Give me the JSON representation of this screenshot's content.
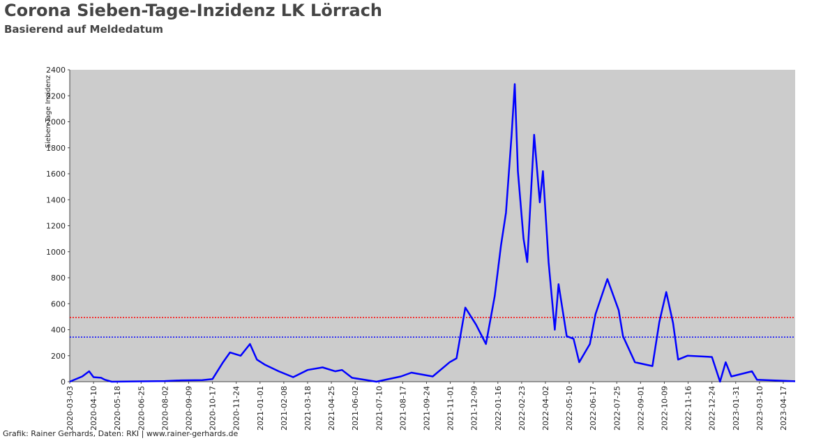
{
  "chart_data": {
    "type": "line",
    "title": "Corona Sieben-Tage-Inzidenz LK Lörrach",
    "subtitle": "Basierend auf Meldedatum",
    "y_label": "Sieben-Tage Inzidenz",
    "source": "Grafik: Rainer Gerhards, Daten: RKI | www.rainer-gerhards.de",
    "x": [
      "2020-03-03",
      "2020-03-23",
      "2020-04-03",
      "2020-04-10",
      "2020-04-22",
      "2020-04-28",
      "2020-05-09",
      "2020-08-02",
      "2020-08-28",
      "2020-10-01",
      "2020-10-17",
      "2020-11-03",
      "2020-11-14",
      "2020-12-01",
      "2020-12-16",
      "2020-12-27",
      "2021-01-09",
      "2021-01-31",
      "2021-02-23",
      "2021-03-18",
      "2021-04-11",
      "2021-05-01",
      "2021-05-12",
      "2021-05-28",
      "2021-07-06",
      "2021-08-14",
      "2021-08-31",
      "2021-10-04",
      "2021-10-31",
      "2021-11-11",
      "2021-11-25",
      "2021-12-12",
      "2021-12-28",
      "2022-01-11",
      "2022-01-21",
      "2022-01-29",
      "2022-02-07",
      "2022-02-12",
      "2022-02-17",
      "2022-02-26",
      "2022-03-04",
      "2022-03-15",
      "2022-03-24",
      "2022-03-29",
      "2022-04-07",
      "2022-04-17",
      "2022-04-23",
      "2022-05-06",
      "2022-05-17",
      "2022-05-26",
      "2022-06-12",
      "2022-06-21",
      "2022-07-10",
      "2022-07-28",
      "2022-08-04",
      "2022-08-23",
      "2022-09-20",
      "2022-10-01",
      "2022-10-12",
      "2022-10-23",
      "2022-10-31",
      "2022-11-15",
      "2022-12-24",
      "2023-01-06",
      "2023-01-15",
      "2023-01-24",
      "2023-02-26",
      "2023-03-06",
      "2023-05-06"
    ],
    "series": [
      {
        "name": "Sieben-Tage Inzidenz",
        "color": "#0000ff",
        "values": [
          0,
          40,
          80,
          35,
          30,
          15,
          0,
          5,
          10,
          12,
          20,
          150,
          225,
          200,
          290,
          170,
          130,
          80,
          35,
          90,
          110,
          80,
          90,
          30,
          0,
          40,
          70,
          40,
          150,
          180,
          570,
          440,
          290,
          660,
          1050,
          1300,
          1900,
          2290,
          1620,
          1100,
          920,
          1900,
          1380,
          1620,
          920,
          400,
          750,
          350,
          330,
          150,
          290,
          520,
          790,
          550,
          350,
          150,
          120,
          460,
          690,
          450,
          170,
          200,
          190,
          0,
          150,
          40,
          80,
          15,
          3
        ]
      }
    ],
    "hlines": [
      {
        "value": 494,
        "color": "#ff0000"
      },
      {
        "value": 343,
        "color": "#0000ff"
      }
    ],
    "xlim": [
      "2020-03-03",
      "2023-05-06"
    ],
    "xticks": [
      "2020-03-03",
      "2020-04-10",
      "2020-05-18",
      "2020-06-25",
      "2020-08-02",
      "2020-09-09",
      "2020-10-17",
      "2020-11-24",
      "2021-01-01",
      "2021-02-08",
      "2021-03-18",
      "2021-04-25",
      "2021-06-02",
      "2021-07-10",
      "2021-08-17",
      "2021-09-24",
      "2021-11-01",
      "2021-12-09",
      "2022-01-16",
      "2022-02-23",
      "2022-04-02",
      "2022-05-10",
      "2022-06-17",
      "2022-07-25",
      "2022-09-01",
      "2022-10-09",
      "2022-11-16",
      "2022-12-24",
      "2023-01-31",
      "2023-03-10",
      "2023-04-17"
    ],
    "ylim": [
      0,
      2400
    ],
    "yticks": [
      0,
      200,
      400,
      600,
      800,
      1000,
      1200,
      1400,
      1600,
      1800,
      2000,
      2200,
      2400
    ]
  }
}
